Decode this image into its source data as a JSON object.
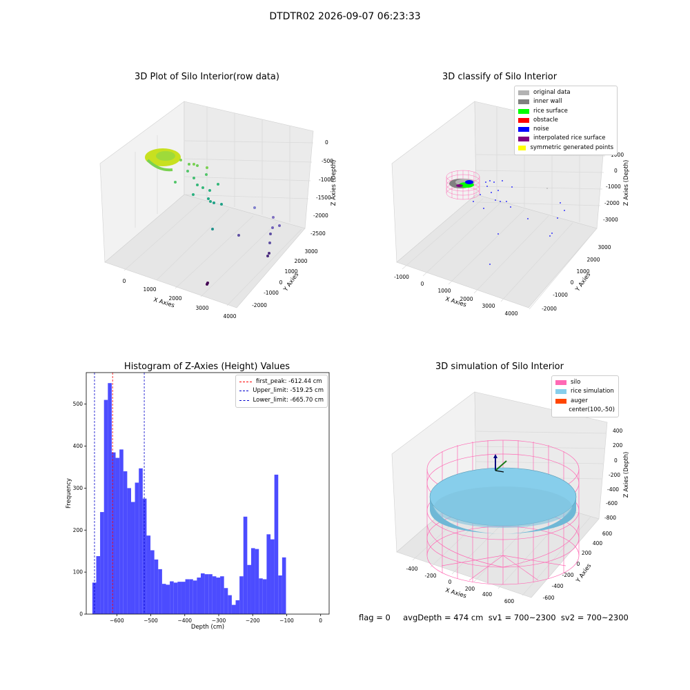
{
  "suptitle": "DTDTR02 2026-09-07 06:23:33",
  "footer": "flag = 0     avgDepth = 474 cm  sv1 = 700~2300  sv2 = 700~2300",
  "colors": {
    "hist": "#4c4cff",
    "peak": "#ff0000",
    "limit": "#0000cc",
    "silo": "#ff69b4",
    "rice": "#87ceeb",
    "auger": "#ff4500"
  },
  "chart_data": [
    {
      "type": "scatter",
      "projection": "3d",
      "title": "3D Plot of Silo Interior(row data)",
      "xlabel": "X Axies",
      "ylabel": "Y Axies",
      "zlabel": "Z Axies (Depth)",
      "xticks": [
        "0",
        "1000",
        "2000",
        "3000",
        "4000"
      ],
      "yticks": [
        "-2000",
        "-1000",
        "0",
        "1000",
        "2000",
        "3000"
      ],
      "zticks": [
        "0",
        "-500",
        "-1000",
        "-1500",
        "-2000",
        "-2500"
      ],
      "colormap": "viridis"
    },
    {
      "type": "scatter",
      "projection": "3d",
      "title": "3D classify of Silo Interior",
      "xlabel": "X Axies",
      "ylabel": "Y Axies",
      "zlabel": "Z Axies (Depth)",
      "xticks": [
        "-1000",
        "0",
        "1000",
        "2000",
        "3000",
        "4000"
      ],
      "yticks": [
        "-2000",
        "-1000",
        "0",
        "1000",
        "2000",
        "3000"
      ],
      "zticks": [
        "1000",
        "0",
        "-1000",
        "-2000",
        "-3000"
      ],
      "legend": [
        {
          "label": "original data",
          "color": "#b3b3b3"
        },
        {
          "label": "inner wall",
          "color": "#808080"
        },
        {
          "label": "rice surface",
          "color": "#00ff00"
        },
        {
          "label": "obstacle",
          "color": "#ff0000"
        },
        {
          "label": "noise",
          "color": "#0000ff"
        },
        {
          "label": "interpolated rice surface",
          "color": "#800080"
        },
        {
          "label": "symmetric generated points",
          "color": "#ffff00"
        }
      ]
    },
    {
      "type": "bar",
      "title": "Histogram of Z-Axies (Height) Values",
      "xlabel": "Depth (cm)",
      "ylabel": "Frequency",
      "xlim": [
        -690,
        25
      ],
      "ylim": [
        0,
        575
      ],
      "xticks": [
        -600,
        -500,
        -400,
        -300,
        -200,
        -100,
        0
      ],
      "yticks": [
        0,
        100,
        200,
        300,
        400,
        500
      ],
      "bin_start": -672,
      "bin_width": 11.4,
      "values": [
        75,
        138,
        243,
        510,
        550,
        385,
        372,
        392,
        340,
        300,
        267,
        313,
        347,
        275,
        187,
        152,
        130,
        107,
        72,
        70,
        78,
        75,
        77,
        77,
        83,
        83,
        80,
        87,
        97,
        95,
        95,
        90,
        87,
        90,
        62,
        45,
        22,
        33,
        90,
        232,
        117,
        157,
        155,
        85,
        83,
        190,
        178,
        332,
        92,
        135
      ],
      "vlines": [
        {
          "label": "first_peak: -612.44 cm",
          "x": -612.44,
          "color": "#ff0000"
        },
        {
          "label": "Upper_limit: -519.25 cm",
          "x": -519.25,
          "color": "#0000cc"
        },
        {
          "label": "Lower_limit: -665.70 cm",
          "x": -665.7,
          "color": "#0000cc"
        }
      ]
    },
    {
      "type": "surface",
      "projection": "3d",
      "title": "3D simulation of Silo Interior",
      "xlabel": "X Axies",
      "ylabel": "Y Axies",
      "zlabel": "Z Axies (Depth)",
      "xticks": [
        "-400",
        "-200",
        "0",
        "200",
        "400",
        "600"
      ],
      "yticks": [
        "-600",
        "-400",
        "-200",
        "0",
        "200",
        "400",
        "600"
      ],
      "zticks": [
        "400",
        "200",
        "0",
        "-200",
        "-400",
        "-600",
        "-800"
      ],
      "legend": [
        {
          "label": "silo",
          "color": "#ff69b4"
        },
        {
          "label": "rice simulation",
          "color": "#87ceeb"
        },
        {
          "label": "auger",
          "color": "#ff4500"
        },
        {
          "label": "center(100,-50)",
          "color": ""
        }
      ]
    }
  ]
}
